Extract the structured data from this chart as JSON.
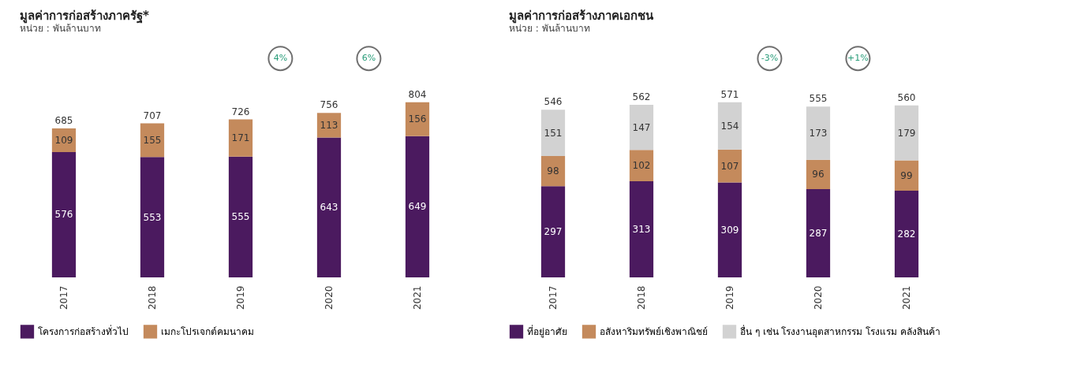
{
  "chart_data": [
    {
      "type": "bar",
      "title": "มูลค่าการก่อสร้างภาครัฐ*",
      "subtitle": "หน่วย : พันล้านบาท",
      "categories": [
        "2017",
        "2018",
        "2019",
        "2020",
        "2021"
      ],
      "stacked": true,
      "data_labels": true,
      "legend": "bottom",
      "series": [
        {
          "name": "โครงการก่อสร้างทั่วไป",
          "color": "#4b1a5f",
          "values": [
            576,
            553,
            555,
            643,
            649
          ]
        },
        {
          "name": "เมกะโปรเจกต์คมนาคม",
          "color": "#c48a5c",
          "values": [
            109,
            155,
            171,
            113,
            156
          ]
        }
      ],
      "totals": [
        "685",
        "707",
        "726",
        "756",
        "804"
      ],
      "annotations": [
        "4%",
        "6%"
      ]
    },
    {
      "type": "bar",
      "title": "มูลค่าการก่อสร้างภาคเอกชน",
      "subtitle": "หน่วย : พันล้านบาท",
      "categories": [
        "2017",
        "2018",
        "2019",
        "2020",
        "2021"
      ],
      "stacked": true,
      "data_labels": true,
      "legend": "bottom",
      "series": [
        {
          "name": "ที่อยู่อาศัย",
          "color": "#4b1a5f",
          "values": [
            297,
            313,
            309,
            287,
            282
          ]
        },
        {
          "name": "อสังหาริมทรัพย์เชิงพาณิชย์",
          "color": "#c48a5c",
          "values": [
            98,
            102,
            107,
            96,
            99
          ]
        },
        {
          "name": "อื่น ๆ เช่น โรงงานอุตสาหกรรม โรงแรม คลังสินค้า",
          "color": "#d2d2d2",
          "values": [
            151,
            147,
            154,
            173,
            179
          ]
        }
      ],
      "totals": [
        "546",
        "562",
        "571",
        "555",
        "560"
      ],
      "annotations": [
        "-3%",
        "+1%"
      ]
    }
  ]
}
